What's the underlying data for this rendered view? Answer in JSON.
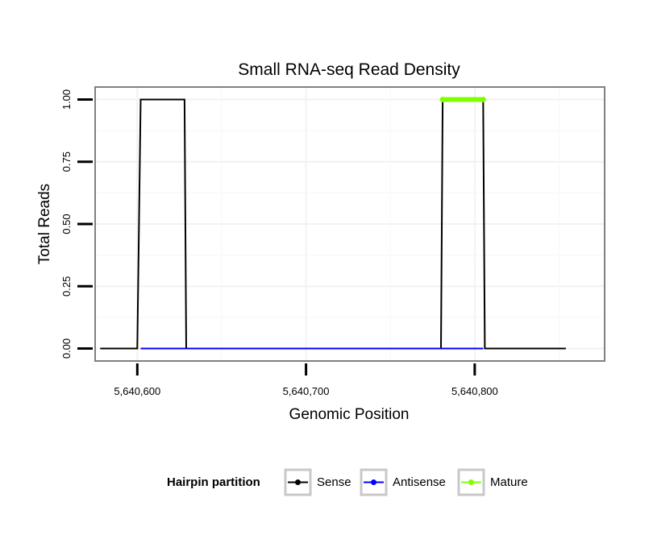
{
  "chart_data": {
    "type": "line",
    "title": "Small RNA-seq Read Density",
    "xlabel": "Genomic Position",
    "ylabel": "Total Reads",
    "xlim": [
      5640575,
      5640877
    ],
    "ylim": [
      -0.05,
      1.05
    ],
    "x_ticks": [
      5640600,
      5640700,
      5640800
    ],
    "x_tick_labels": [
      "5,640,600",
      "5,640,700",
      "5,640,800"
    ],
    "y_ticks": [
      0,
      0.25,
      0.5,
      0.75,
      1.0
    ],
    "y_tick_labels": [
      "0.00",
      "0.25",
      "0.50",
      "0.75",
      "1.00"
    ],
    "grid": true,
    "legend": {
      "title": "Hairpin partition",
      "position": "bottom",
      "entries": [
        {
          "label": "Sense",
          "color": "#000000"
        },
        {
          "label": "Antisense",
          "color": "#0000ff"
        },
        {
          "label": "Mature",
          "color": "#7fff00"
        }
      ]
    },
    "series": [
      {
        "name": "Sense",
        "color": "#000000",
        "x": [
          5640578,
          5640600,
          5640602,
          5640628,
          5640629,
          5640780,
          5640781,
          5640805,
          5640806,
          5640854
        ],
        "values": [
          0,
          0,
          1,
          1,
          0,
          0,
          1,
          1,
          0,
          0
        ]
      },
      {
        "name": "Antisense",
        "color": "#0000ff",
        "x": [
          5640602,
          5640628,
          5640781,
          5640805
        ],
        "values": [
          0,
          0,
          0,
          0
        ]
      },
      {
        "name": "Mature",
        "color": "#7fff00",
        "x": [
          5640781,
          5640805
        ],
        "values": [
          1,
          1
        ]
      }
    ]
  }
}
